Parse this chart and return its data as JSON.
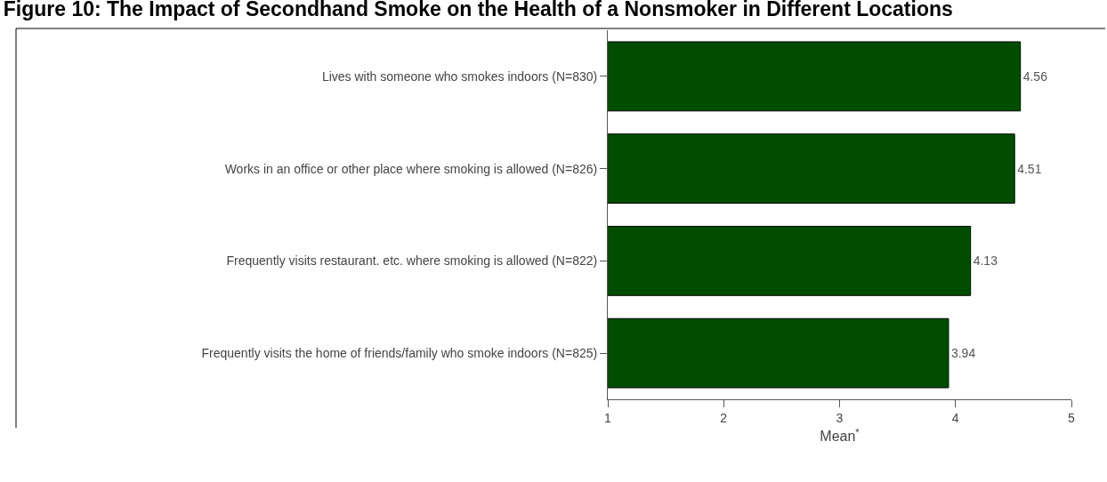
{
  "chart_data": {
    "type": "bar",
    "orientation": "horizontal",
    "title": "Figure 10: The Impact of Secondhand Smoke on the Health of a Nonsmoker in Different Locations",
    "xlabel": "Mean$^{*}$",
    "categories": [
      "Lives with someone who smokes indoors (N=830)",
      "Works in an office or other place where smoking is allowed (N=826)",
      "Frequently visits restaurant. etc. where smoking is allowed (N=822)",
      "Frequently visits the home of friends/family who smoke indoors (N=825)"
    ],
    "values": [
      4.56,
      4.51,
      4.13,
      3.94
    ],
    "color": "#004d00",
    "xlim": [
      1,
      5
    ],
    "xticks": [
      1,
      2,
      3,
      4,
      5
    ],
    "data_labels": true,
    "grid": false
  }
}
